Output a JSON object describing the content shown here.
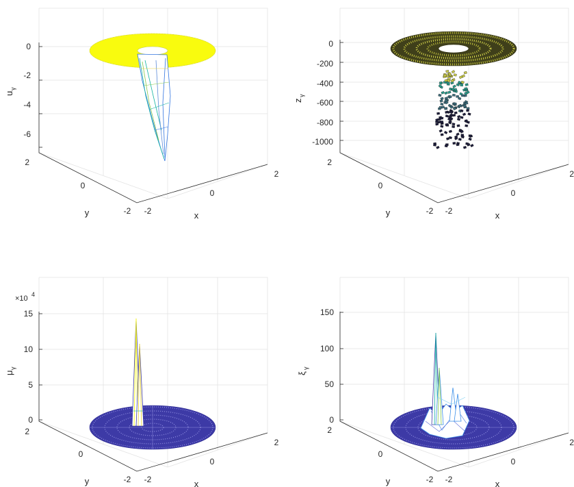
{
  "figure": {
    "background": "#ffffff",
    "colormap": "parula",
    "panels": [
      {
        "id": "u",
        "zlabel_main": "u",
        "zlabel_sub": "γ",
        "z_multiplier": "",
        "xlabel": "x",
        "ylabel": "y",
        "zticks": [
          "0",
          "-2",
          "-4",
          "-6"
        ],
        "xticks": [
          "-2",
          "0",
          "2"
        ],
        "yticks": [
          "2",
          "0",
          "-2"
        ]
      },
      {
        "id": "z",
        "zlabel_main": "z",
        "zlabel_sub": "γ",
        "z_multiplier": "",
        "xlabel": "x",
        "ylabel": "y",
        "zticks": [
          "0",
          "-200",
          "-400",
          "-600",
          "-800",
          "-1000"
        ],
        "xticks": [
          "-2",
          "0",
          "2"
        ],
        "yticks": [
          "2",
          "0",
          "-2"
        ]
      },
      {
        "id": "mu",
        "zlabel_main": "μ",
        "zlabel_sub": "γ",
        "z_multiplier": "×10",
        "z_multiplier_exp": "4",
        "xlabel": "x",
        "ylabel": "y",
        "zticks": [
          "15",
          "10",
          "5",
          "0"
        ],
        "xticks": [
          "-2",
          "0",
          "2"
        ],
        "yticks": [
          "2",
          "0",
          "-2"
        ]
      },
      {
        "id": "xi",
        "zlabel_main": "ξ",
        "zlabel_sub": "γ",
        "z_multiplier": "",
        "xlabel": "x",
        "ylabel": "y",
        "zticks": [
          "150",
          "100",
          "50",
          "0"
        ],
        "xticks": [
          "-2",
          "0",
          "2"
        ],
        "yticks": [
          "2",
          "0",
          "-2"
        ]
      }
    ]
  },
  "chart_data": [
    {
      "type": "surface",
      "domain": "annulus",
      "x_range": [
        -2,
        2
      ],
      "y_range": [
        -2,
        2
      ],
      "inner_radius": 0.5,
      "outer_radius": 2,
      "zlim": [
        -7.5,
        0.5
      ],
      "zticks": [
        0,
        -2,
        -4,
        -6
      ],
      "xticks": [
        -2,
        0,
        2
      ],
      "yticks": [
        -2,
        0,
        2
      ],
      "surface_value_on_annulus": 0,
      "min_value": -7.3,
      "description_values": {
        "rim_z": 0,
        "dip_min_z": -7.3
      },
      "surface_color": "#f9fb0e",
      "dip_colors": [
        "#2f73e0",
        "#12b2a1",
        "#85c94c",
        "#e8d43c"
      ]
    },
    {
      "type": "scatter3d",
      "domain": "annulus",
      "x_range": [
        -2,
        2
      ],
      "y_range": [
        -2,
        2
      ],
      "zlim": [
        -1150,
        50
      ],
      "zticks": [
        0,
        -200,
        -400,
        -600,
        -800,
        -1000
      ],
      "xticks": [
        -2,
        0,
        2
      ],
      "yticks": [
        -2,
        0,
        2
      ],
      "ring_z": 0,
      "column_z_range": [
        -1080,
        -300
      ],
      "ring_color": "#cccc40",
      "point_colors": [
        "#1d1d3a",
        "#3b6b7a",
        "#2a9a8a",
        "#c9c94a"
      ]
    },
    {
      "type": "surface",
      "domain": "disk",
      "x_range": [
        -2,
        2
      ],
      "y_range": [
        -2,
        2
      ],
      "zlim": [
        0,
        15
      ],
      "z_scale": 10000,
      "zticks": [
        0,
        5,
        10,
        15
      ],
      "xticks": [
        -2,
        0,
        2
      ],
      "yticks": [
        -2,
        0,
        2
      ],
      "baseline_z": 0,
      "spikes": [
        {
          "x": -0.4,
          "y": 0.2,
          "z": 14.2
        },
        {
          "x": -0.3,
          "y": 0.3,
          "z": 10.7
        }
      ],
      "surface_color": "#3d3aa6"
    },
    {
      "type": "surface",
      "domain": "disk",
      "x_range": [
        -2,
        2
      ],
      "y_range": [
        -2,
        2
      ],
      "zlim": [
        0,
        150
      ],
      "zticks": [
        0,
        50,
        100,
        150
      ],
      "xticks": [
        -2,
        0,
        2
      ],
      "yticks": [
        -2,
        0,
        2
      ],
      "baseline_z": 0,
      "spikes": [
        {
          "x": -0.5,
          "y": 0.3,
          "z": 122
        },
        {
          "x": -0.3,
          "y": 0.2,
          "z": 74
        },
        {
          "x": 0.2,
          "y": 0.3,
          "z": 60
        },
        {
          "x": 0.6,
          "y": 0.1,
          "z": 45
        }
      ],
      "surface_color": "#3d3aa6"
    }
  ]
}
